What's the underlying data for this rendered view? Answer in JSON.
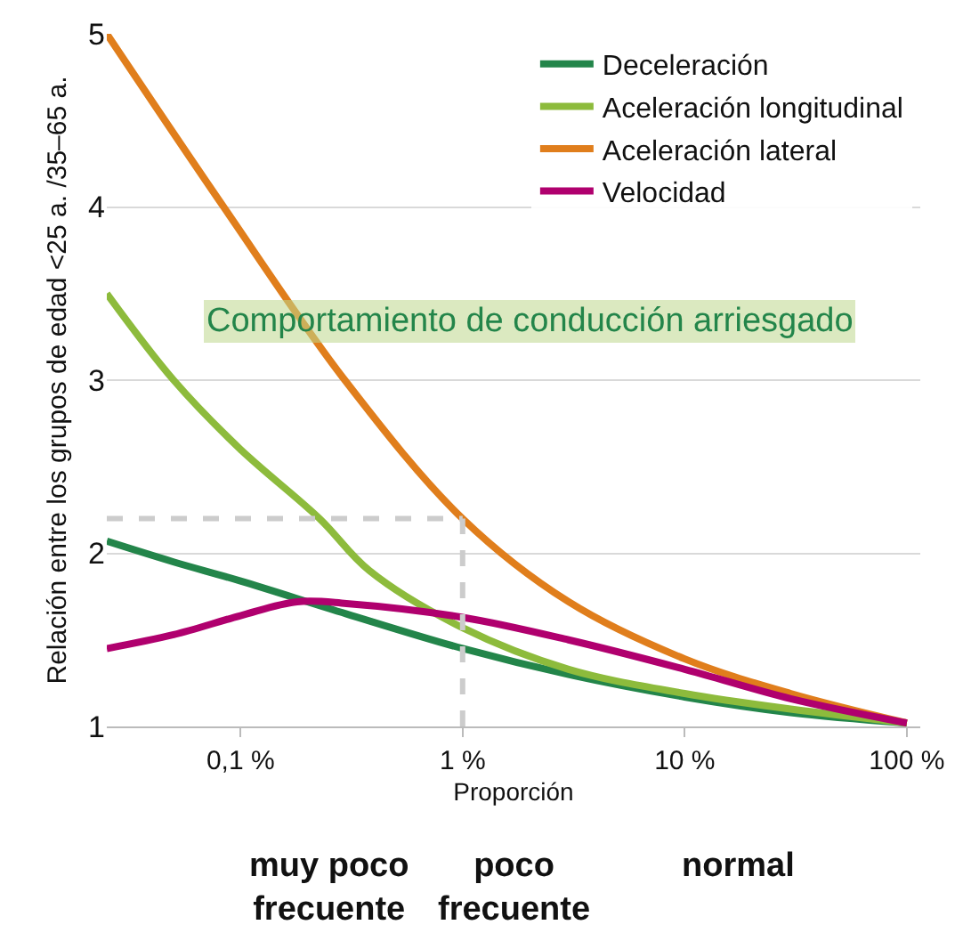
{
  "chart_data": {
    "type": "line",
    "xlabel": "Proporción",
    "ylabel": "Relación entre los grupos de edad <25 a. /35–65 a.",
    "series": [
      {
        "name": "Deceleración",
        "color": "#23854a",
        "x": [
          0.025,
          0.05,
          0.1,
          0.3,
          1,
          3,
          10,
          30,
          100
        ],
        "values": [
          2.07,
          1.95,
          1.84,
          1.65,
          1.45,
          1.3,
          1.17,
          1.08,
          1.02
        ]
      },
      {
        "name": "Aceleración longitudinal",
        "color": "#8dbb3c",
        "x": [
          0.025,
          0.05,
          0.1,
          0.227,
          0.38,
          1,
          3,
          10,
          30,
          100
        ],
        "values": [
          3.5,
          3.0,
          2.6,
          2.2,
          1.9,
          1.57,
          1.33,
          1.19,
          1.1,
          1.02
        ]
      },
      {
        "name": "Aceleración lateral",
        "color": "#e07e1c",
        "x": [
          0.025,
          0.084,
          0.295,
          1,
          3,
          10,
          30,
          100
        ],
        "values": [
          5.0,
          4.0,
          3.0,
          2.2,
          1.72,
          1.39,
          1.19,
          1.02
        ]
      },
      {
        "name": "Velocidad",
        "color": "#b0006e",
        "x": [
          0.025,
          0.05,
          0.1,
          0.18,
          0.3,
          1,
          3,
          10,
          30,
          100
        ],
        "values": [
          1.45,
          1.53,
          1.64,
          1.72,
          1.71,
          1.63,
          1.5,
          1.33,
          1.16,
          1.02
        ]
      }
    ],
    "log": "x",
    "xlim": [
      0.025,
      115
    ],
    "xticks": [
      {
        "value": 0.1,
        "label": "0,1 %"
      },
      {
        "value": 1,
        "label": "1 %"
      },
      {
        "value": 10,
        "label": "10 %"
      },
      {
        "value": 100,
        "label": "100 %"
      }
    ],
    "ylim": [
      1,
      5
    ],
    "yticks": [
      1,
      2,
      3,
      4,
      5
    ],
    "grid": "y",
    "legend": "top right",
    "marker": "none",
    "line_style": "solid",
    "ref_lines": [
      {
        "axis": "x",
        "value": 1,
        "color": "#cccccc",
        "line_style": "dashed"
      },
      {
        "axis": "y",
        "value": 2.2,
        "color": "#cccccc",
        "line_style": "dashed"
      }
    ],
    "annotations": [
      "Comportamiento de conducción arriesgado",
      "muy poco frecuente",
      "poco frecuente",
      "normal"
    ]
  }
}
